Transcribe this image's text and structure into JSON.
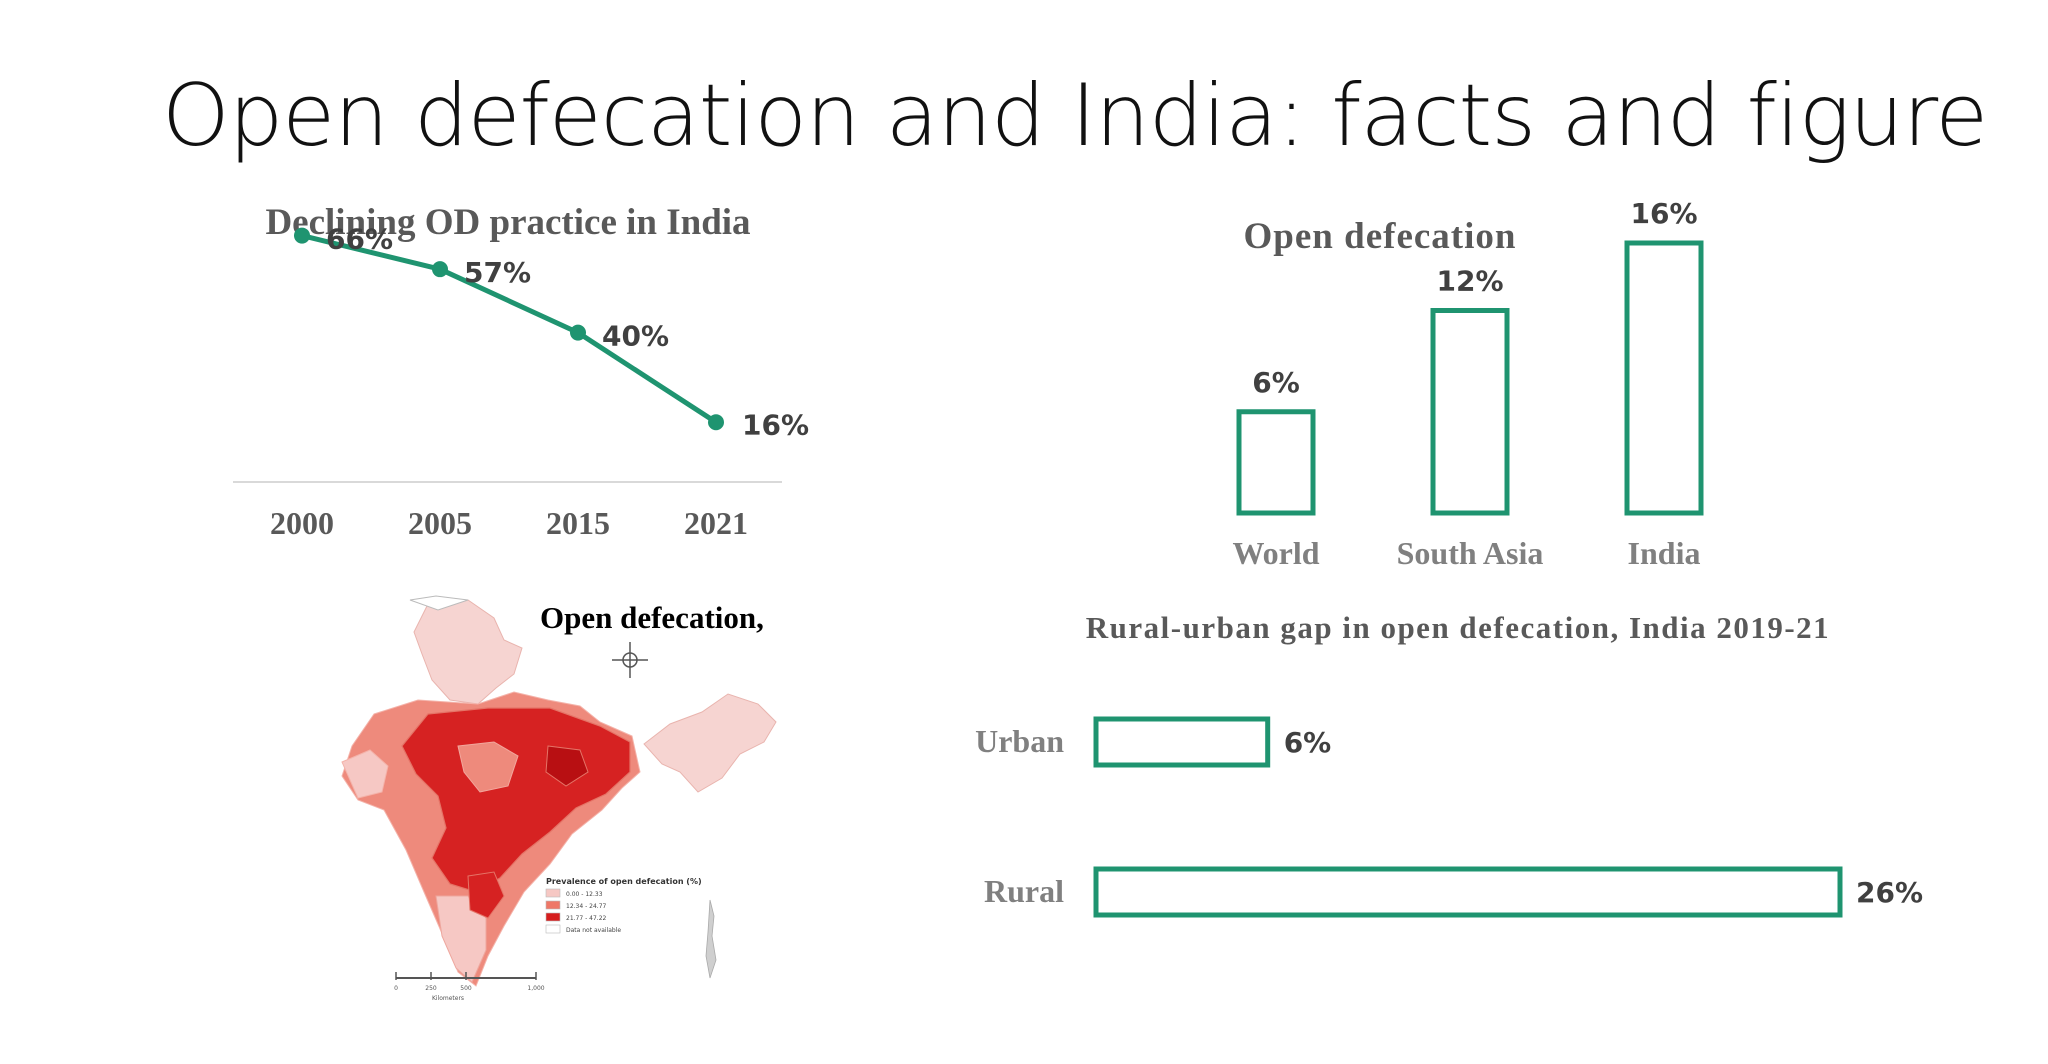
{
  "slide": {
    "title": "Open defecation and India: facts and figure"
  },
  "map": {
    "title": "Open defecation,",
    "legend_title": "Prevalence of open defecation (%)",
    "legend_items": [
      {
        "label": "0.00 - 12.33",
        "color": "#f6c8c4"
      },
      {
        "label": "12.34 - 24.77",
        "color": "#ee7767"
      },
      {
        "label": "21.77 - 47.22",
        "color": "#d61d1d"
      },
      {
        "label": "Data not available",
        "color": "#ffffff"
      }
    ],
    "scale_ticks": [
      "0",
      "250",
      "500",
      "1,000"
    ],
    "scale_unit": "Kilometers",
    "icons": [
      "north-arrow-icon"
    ]
  },
  "chart_data": [
    {
      "id": "od-trend",
      "type": "line",
      "title": "Declining OD practice in India",
      "categories": [
        "2000",
        "2005",
        "2015",
        "2021"
      ],
      "values": [
        66,
        57,
        40,
        16
      ],
      "labels": [
        "66%",
        "57%",
        "40%",
        "16%"
      ],
      "color": "#1f9470",
      "ylim": [
        0,
        70
      ],
      "grid": false
    },
    {
      "id": "od-region",
      "type": "bar",
      "title": "Open defecation",
      "categories": [
        "World",
        "South Asia",
        "India"
      ],
      "values": [
        6,
        12,
        16
      ],
      "labels": [
        "6%",
        "12%",
        "16%"
      ],
      "color": "#1f9470",
      "ylim": [
        0,
        16
      ],
      "grid": false
    },
    {
      "id": "od-rural-urban",
      "type": "bar",
      "orientation": "horizontal",
      "title": "Rural-urban gap in open defecation, India 2019-21",
      "categories": [
        "Urban",
        "Rural"
      ],
      "values": [
        6,
        26
      ],
      "labels": [
        "6%",
        "26%"
      ],
      "color": "#1f9470",
      "xlim": [
        0,
        26
      ],
      "grid": false
    }
  ]
}
